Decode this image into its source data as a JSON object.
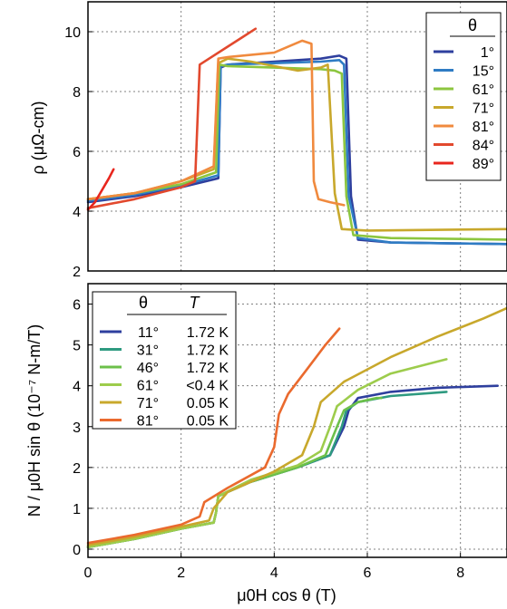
{
  "chart_data": [
    {
      "type": "line",
      "ylabel": "ρ (μΩ-cm)",
      "xlim": [
        0,
        9
      ],
      "ylim": [
        2,
        11
      ],
      "y_ticks": [
        "2",
        "4",
        "6",
        "8",
        "10"
      ],
      "grid": true,
      "legend_placement": "top-right",
      "legend_header": "θ",
      "series": [
        {
          "name": "1°",
          "color": "#2e3f9e",
          "x": [
            0,
            1,
            2,
            2.8,
            2.85,
            3.0,
            4.0,
            5.0,
            5.4,
            5.55,
            5.65,
            5.8,
            6.5,
            9.0
          ],
          "y": [
            4.3,
            4.5,
            4.8,
            5.1,
            8.8,
            8.9,
            9.0,
            9.1,
            9.2,
            9.1,
            4.5,
            3.05,
            2.95,
            2.9
          ]
        },
        {
          "name": "15°",
          "color": "#2f7cc4",
          "x": [
            0,
            1,
            2,
            2.8,
            2.85,
            3.0,
            4.0,
            5.0,
            5.4,
            5.5,
            5.6,
            5.8,
            6.5,
            9.0
          ],
          "y": [
            4.35,
            4.55,
            4.85,
            5.2,
            8.85,
            8.9,
            8.95,
            9.0,
            9.05,
            8.9,
            4.5,
            3.1,
            2.95,
            2.9
          ]
        },
        {
          "name": "61°",
          "color": "#8cc63f",
          "x": [
            0,
            1,
            2,
            2.75,
            2.82,
            3.0,
            4.0,
            5.0,
            5.3,
            5.45,
            5.55,
            5.7,
            6.5,
            9.0
          ],
          "y": [
            4.4,
            4.6,
            4.9,
            5.3,
            8.9,
            8.85,
            8.8,
            8.75,
            8.7,
            8.6,
            4.5,
            3.2,
            3.1,
            3.05
          ]
        },
        {
          "name": "71°",
          "color": "#c8a82c",
          "x": [
            0,
            1,
            2,
            2.7,
            2.8,
            3.0,
            3.5,
            4.5,
            5.0,
            5.15,
            5.3,
            5.45,
            6.0,
            9.0
          ],
          "y": [
            4.4,
            4.6,
            5.0,
            5.4,
            8.95,
            9.1,
            9.0,
            8.7,
            8.8,
            8.9,
            4.6,
            3.4,
            3.35,
            3.4
          ]
        },
        {
          "name": "81°",
          "color": "#f08a3e",
          "x": [
            0,
            1,
            2,
            2.7,
            2.8,
            3.0,
            4.0,
            4.6,
            4.8,
            4.85,
            4.95,
            5.2,
            5.5
          ],
          "y": [
            4.4,
            4.6,
            5.0,
            5.5,
            9.1,
            9.15,
            9.3,
            9.7,
            9.6,
            5.0,
            4.4,
            4.3,
            4.2
          ]
        },
        {
          "name": "84°",
          "color": "#e2492e",
          "x": [
            0,
            1,
            2,
            2.3,
            2.4,
            2.6,
            3.0,
            3.3,
            3.6
          ],
          "y": [
            4.1,
            4.4,
            4.8,
            5.0,
            8.9,
            9.1,
            9.5,
            9.8,
            10.1
          ]
        },
        {
          "name": "89°",
          "color": "#e8261e",
          "x": [
            0,
            0.15,
            0.3,
            0.45,
            0.55
          ],
          "y": [
            4.05,
            4.3,
            4.7,
            5.1,
            5.4
          ]
        }
      ]
    },
    {
      "type": "line",
      "xlabel": "μ0H cos θ (T)",
      "ylabel": "N / μ0H sin θ   (10⁻⁷ N-m/T)",
      "xlim": [
        0,
        9
      ],
      "ylim": [
        -0.2,
        6.5
      ],
      "x_ticks": [
        "0",
        "2",
        "4",
        "6",
        "8"
      ],
      "y_ticks": [
        "0",
        "1",
        "2",
        "3",
        "4",
        "5",
        "6"
      ],
      "grid": true,
      "legend_placement": "top-left",
      "legend_headers": [
        "θ",
        "T"
      ],
      "series": [
        {
          "name": "11°",
          "temperature": "1.72 K",
          "color": "#2e3f9e",
          "x": [
            0,
            1,
            2,
            2.7,
            2.75,
            2.8,
            3.5,
            4.5,
            5.2,
            5.5,
            5.6,
            5.8,
            6.5,
            7.5,
            8.8
          ],
          "y": [
            0.05,
            0.25,
            0.5,
            0.65,
            0.9,
            1.3,
            1.65,
            2.0,
            2.3,
            3.0,
            3.4,
            3.7,
            3.85,
            3.95,
            4.0
          ]
        },
        {
          "name": "31°",
          "temperature": "1.72 K",
          "color": "#2e9a80",
          "x": [
            0,
            1,
            2,
            2.7,
            2.75,
            2.8,
            3.5,
            4.5,
            5.2,
            5.45,
            5.55,
            5.8,
            6.5,
            7.7
          ],
          "y": [
            0.05,
            0.25,
            0.5,
            0.65,
            0.9,
            1.3,
            1.65,
            2.0,
            2.3,
            3.0,
            3.4,
            3.6,
            3.75,
            3.85
          ]
        },
        {
          "name": "46°",
          "temperature": "1.72 K",
          "color": "#6cc04a",
          "x": [
            0,
            1,
            2,
            2.7,
            2.75,
            2.8,
            3.5,
            4.5,
            5.1,
            5.35,
            5.5,
            5.8,
            6.2,
            6.3
          ],
          "y": [
            0.05,
            0.25,
            0.5,
            0.65,
            0.9,
            1.3,
            1.65,
            2.0,
            2.3,
            3.0,
            3.4,
            3.6,
            3.7,
            3.7
          ]
        },
        {
          "name": "61°",
          "temperature": "<0.4 K",
          "color": "#9dcc4c",
          "x": [
            0,
            1,
            2,
            2.7,
            2.75,
            2.8,
            3.5,
            4.5,
            5.0,
            5.2,
            5.35,
            5.8,
            6.5,
            7.7
          ],
          "y": [
            0.05,
            0.25,
            0.5,
            0.65,
            0.9,
            1.3,
            1.7,
            2.05,
            2.4,
            3.0,
            3.5,
            3.9,
            4.3,
            4.65
          ]
        },
        {
          "name": "71°",
          "temperature": "0.05 K",
          "color": "#c8a82c",
          "x": [
            0,
            1,
            2,
            2.6,
            2.7,
            3.0,
            4.0,
            4.6,
            4.85,
            5.0,
            5.5,
            6.5,
            7.5,
            8.5,
            9.0
          ],
          "y": [
            0.1,
            0.3,
            0.55,
            0.7,
            1.0,
            1.4,
            1.9,
            2.3,
            3.0,
            3.6,
            4.1,
            4.7,
            5.2,
            5.65,
            5.9
          ]
        },
        {
          "name": "81°",
          "temperature": "0.05 K",
          "color": "#ea6a2e",
          "x": [
            0,
            1,
            2,
            2.4,
            2.5,
            3.0,
            3.8,
            4.0,
            4.1,
            4.3,
            4.7,
            5.1,
            5.4
          ],
          "y": [
            0.15,
            0.35,
            0.6,
            0.8,
            1.15,
            1.5,
            2.0,
            2.5,
            3.3,
            3.8,
            4.4,
            5.0,
            5.4
          ]
        }
      ]
    }
  ]
}
